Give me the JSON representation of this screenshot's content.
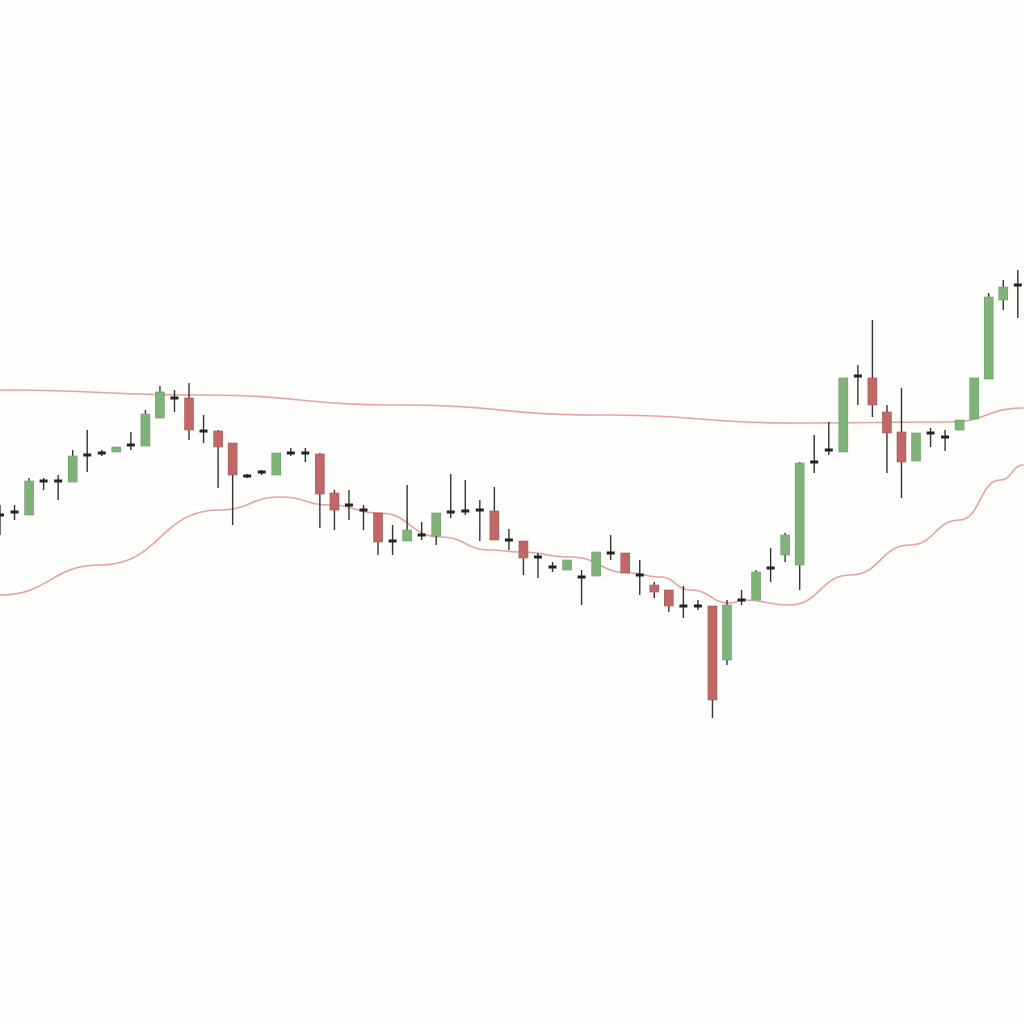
{
  "chart_data": {
    "type": "candlestick",
    "title": "",
    "xlabel": "",
    "ylabel": "",
    "ylim": [
      0,
      100
    ],
    "grid": false,
    "colors": {
      "up": "#7fb37a",
      "down": "#c06868",
      "doji": "#222222",
      "wick": "#333333",
      "band": "#e3a3a3",
      "background": "#fdfdfb"
    },
    "candles_ohlc": [
      [
        48.5,
        49.5,
        46.5,
        48.5
      ],
      [
        48.8,
        49.5,
        48.0,
        48.8
      ],
      [
        48.5,
        52.2,
        48.5,
        51.9
      ],
      [
        51.9,
        52.2,
        51.0,
        51.9
      ],
      [
        51.9,
        52.5,
        50.0,
        51.9
      ],
      [
        51.8,
        55.0,
        51.8,
        54.4
      ],
      [
        54.5,
        57.0,
        52.8,
        54.5
      ],
      [
        54.7,
        55.0,
        54.4,
        54.7
      ],
      [
        54.8,
        55.3,
        54.8,
        55.3
      ],
      [
        55.5,
        56.8,
        55.0,
        55.5
      ],
      [
        55.4,
        59.0,
        55.4,
        58.6
      ],
      [
        58.2,
        61.4,
        58.2,
        60.8
      ],
      [
        60.2,
        61.0,
        58.8,
        60.2
      ],
      [
        60.2,
        61.7,
        56.0,
        57.0
      ],
      [
        56.9,
        58.5,
        55.7,
        56.9
      ],
      [
        56.9,
        57.0,
        51.2,
        55.3
      ],
      [
        55.7,
        55.7,
        47.5,
        52.5
      ],
      [
        52.4,
        52.6,
        52.2,
        52.4
      ],
      [
        52.8,
        53.0,
        52.5,
        52.8
      ],
      [
        52.5,
        54.7,
        52.5,
        54.7
      ],
      [
        54.7,
        55.2,
        54.4,
        54.7
      ],
      [
        54.7,
        55.2,
        53.8,
        54.7
      ],
      [
        54.6,
        54.7,
        47.2,
        50.6
      ],
      [
        50.7,
        51.0,
        47.0,
        49.0
      ],
      [
        49.5,
        51.0,
        48.0,
        49.5
      ],
      [
        49.0,
        49.5,
        47.0,
        49.0
      ],
      [
        48.7,
        48.7,
        44.5,
        45.8
      ],
      [
        45.9,
        47.5,
        44.5,
        45.9
      ],
      [
        45.9,
        51.5,
        45.9,
        47.0
      ],
      [
        46.5,
        47.8,
        46.0,
        46.5
      ],
      [
        46.4,
        48.7,
        45.5,
        48.7
      ],
      [
        48.8,
        52.6,
        48.2,
        49.0
      ],
      [
        48.9,
        52.0,
        48.5,
        48.9
      ],
      [
        49.0,
        50.0,
        45.9,
        49.0
      ],
      [
        48.9,
        51.3,
        46.0,
        46.0
      ],
      [
        46.0,
        47.1,
        45.0,
        46.0
      ],
      [
        45.9,
        45.9,
        42.5,
        44.2
      ],
      [
        44.3,
        44.7,
        42.2,
        44.3
      ],
      [
        43.3,
        43.8,
        42.8,
        43.3
      ],
      [
        43.0,
        44.0,
        43.0,
        44.0
      ],
      [
        42.3,
        43.0,
        39.5,
        42.3
      ],
      [
        42.4,
        44.8,
        42.4,
        44.8
      ],
      [
        44.7,
        46.5,
        44.0,
        44.7
      ],
      [
        44.7,
        44.7,
        42.7,
        42.7
      ],
      [
        42.5,
        44.0,
        40.5,
        42.5
      ],
      [
        41.5,
        41.8,
        40.2,
        40.8
      ],
      [
        41.0,
        41.0,
        38.8,
        39.4
      ],
      [
        39.4,
        41.4,
        38.2,
        39.4
      ],
      [
        39.4,
        40.0,
        39.0,
        39.4
      ],
      [
        39.4,
        39.4,
        28.2,
        30.0
      ],
      [
        34.0,
        40.0,
        33.5,
        39.5
      ],
      [
        40.0,
        41.0,
        39.5,
        40.0
      ],
      [
        40.0,
        43.0,
        40.0,
        42.8
      ],
      [
        43.2,
        45.2,
        41.8,
        43.2
      ],
      [
        44.5,
        46.7,
        43.8,
        46.5
      ],
      [
        43.5,
        53.8,
        41.0,
        53.7
      ],
      [
        53.8,
        56.5,
        52.7,
        53.8
      ],
      [
        55.0,
        57.8,
        54.5,
        55.0
      ],
      [
        54.8,
        62.2,
        54.8,
        62.2
      ],
      [
        62.4,
        63.5,
        59.5,
        62.4
      ],
      [
        62.2,
        68.0,
        58.3,
        59.5
      ],
      [
        58.8,
        59.5,
        52.7,
        56.7
      ],
      [
        56.8,
        61.2,
        50.2,
        53.8
      ],
      [
        53.9,
        56.7,
        53.9,
        56.7
      ],
      [
        56.7,
        57.2,
        55.3,
        56.7
      ],
      [
        56.3,
        57.0,
        54.9,
        56.3
      ],
      [
        57.0,
        58.0,
        57.0,
        58.0
      ],
      [
        58.1,
        62.2,
        58.1,
        62.2
      ],
      [
        62.1,
        70.7,
        62.1,
        70.3
      ],
      [
        70.0,
        72.0,
        69.0,
        71.3
      ],
      [
        71.5,
        73.0,
        68.2,
        71.5
      ]
    ],
    "upper_band": [
      [
        0,
        61.0
      ],
      [
        13.8,
        60.5
      ],
      [
        27.5,
        59.5
      ],
      [
        41.3,
        58.5
      ],
      [
        55,
        57.7
      ],
      [
        65.3,
        57.8
      ],
      [
        70.4,
        59.2
      ]
    ],
    "lower_band": [
      [
        0,
        40.5
      ],
      [
        6.9,
        43.5
      ],
      [
        15.1,
        49.0
      ],
      [
        19.3,
        50.3
      ],
      [
        22.7,
        49.5
      ],
      [
        26.1,
        48.7
      ],
      [
        30.3,
        46.3
      ],
      [
        33.7,
        45.0
      ],
      [
        35.8,
        44.8
      ],
      [
        39.2,
        44.3
      ],
      [
        43.3,
        42.7
      ],
      [
        45.4,
        42.3
      ],
      [
        47.5,
        41.0
      ],
      [
        50.2,
        39.7
      ],
      [
        51.2,
        40.0
      ],
      [
        54.3,
        39.5
      ],
      [
        58.5,
        42.5
      ],
      [
        62.6,
        45.5
      ],
      [
        66,
        48.0
      ],
      [
        68.8,
        52.0
      ],
      [
        70.4,
        53.5
      ]
    ]
  }
}
